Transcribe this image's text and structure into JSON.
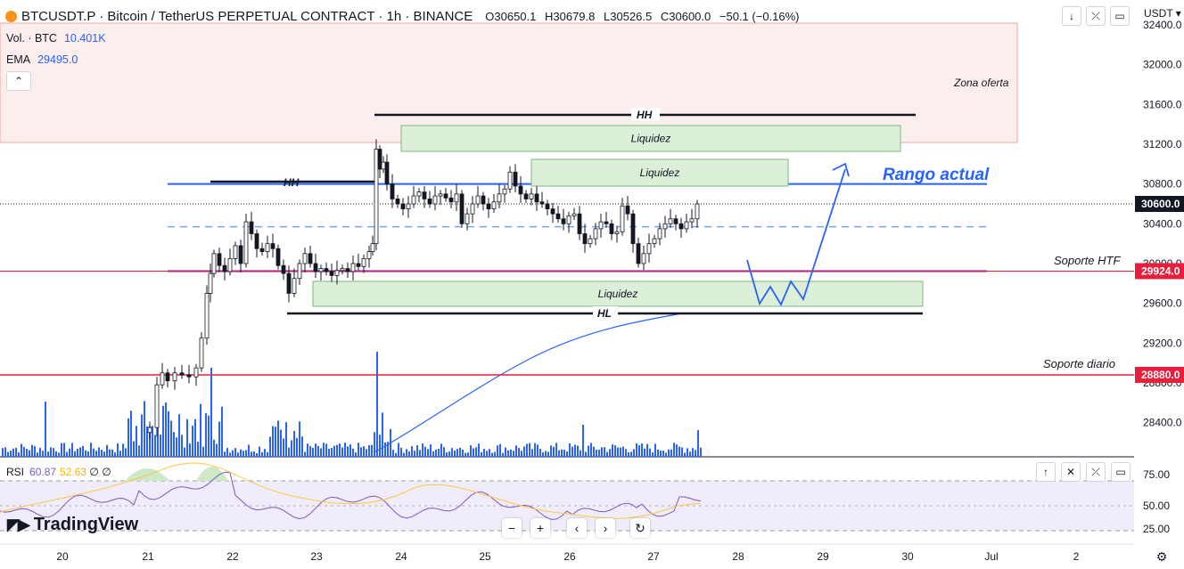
{
  "header": {
    "symbol_line": "BTCUSDT.P · Bitcoin / TetherUS PERPETUAL CONTRACT · 1h · BINANCE",
    "o_label": "O",
    "o_value": "30650.1",
    "h_label": "H",
    "h_value": "30679.8",
    "l_label": "L",
    "l_value": "30526.5",
    "c_label": "C",
    "c_value": "30600.0",
    "change": "−50.1 (−0.16%)"
  },
  "indicators": {
    "vol_label": "Vol. · BTC",
    "vol_value": "10.401K",
    "ema_label": "EMA",
    "ema_value": "29495.0"
  },
  "rsi": {
    "label": "RSI",
    "value1": "60.87",
    "value2": "52.63",
    "extra": "∅ ∅"
  },
  "currency": "USDT",
  "brand": "TradingView",
  "chart_data": {
    "type": "candlestick",
    "y_range": [
      28160,
      32480
    ],
    "y_ticks": [
      "32400.0",
      "32000.0",
      "31600.0",
      "31200.0",
      "30800.0",
      "30400.0",
      "30000.0",
      "29600.0",
      "29200.0",
      "28800.0",
      "28400.0"
    ],
    "x_ticks": [
      "20",
      "21",
      "22",
      "23",
      "24",
      "25",
      "26",
      "27",
      "28",
      "29",
      "30",
      "Jul",
      "2"
    ],
    "price_tags": [
      {
        "value": "30600.0",
        "color": "#131722"
      },
      {
        "value": "29924.0",
        "color": "#e91e3c"
      },
      {
        "value": "28880.0",
        "color": "#e91e3c"
      }
    ],
    "rsi_ticks": [
      "75.00",
      "50.00",
      "25.00"
    ],
    "annotations": {
      "zona_oferta": "Zona oferta",
      "liquidez": "Liquidez",
      "hh": "HH",
      "hl": "HL",
      "rango_actual": "Rango actual",
      "soporte_htf": "Soporte HTF",
      "soporte_diario": "Soporte diario"
    },
    "colors": {
      "up": "#26a69a",
      "down": "#ef5350",
      "candle_ref": "#131722",
      "range_line": "#2962ff",
      "support": "#e91e3c",
      "hl_line": "#131722",
      "liquidity_fill": "#dcefd9",
      "supply_fill": "#fdeeee"
    }
  }
}
